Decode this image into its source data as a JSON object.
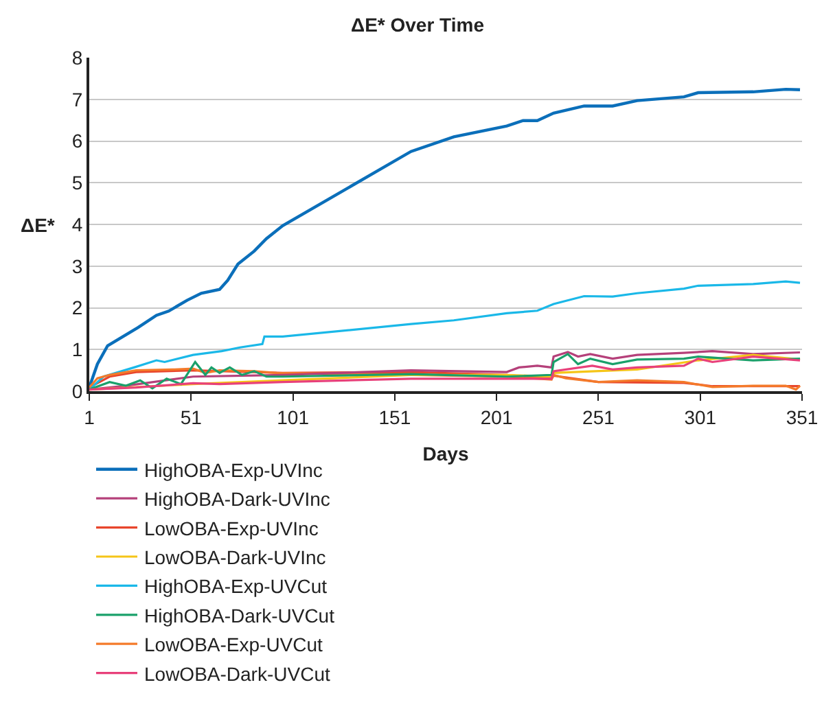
{
  "chart_data": {
    "type": "line",
    "title": "ΔE* Over Time",
    "xlabel": "Days",
    "ylabel": "ΔE*",
    "xlim": [
      1,
      351
    ],
    "xticks": [
      1,
      51,
      101,
      151,
      201,
      251,
      301,
      351
    ],
    "ylim": [
      0,
      8
    ],
    "yticks": [
      0,
      1,
      2,
      3,
      4,
      5,
      6,
      7,
      8
    ],
    "grid": "y",
    "legend": "bottom",
    "marker": "none",
    "line_style": "solid",
    "series": [
      {
        "name": "HighOBA-Exp-UVInc",
        "color": "#0b6fba",
        "x": [
          1,
          5,
          10,
          25,
          34,
          40,
          49,
          56,
          65,
          69,
          74,
          82,
          88,
          96,
          159,
          180,
          206,
          214,
          221,
          229,
          244,
          258,
          270,
          293,
          300,
          327,
          343,
          350
        ],
        "values": [
          0.09,
          0.65,
          1.09,
          1.53,
          1.82,
          1.92,
          2.18,
          2.35,
          2.44,
          2.66,
          3.05,
          3.36,
          3.66,
          3.97,
          5.75,
          6.1,
          6.36,
          6.49,
          6.49,
          6.67,
          6.84,
          6.84,
          6.97,
          7.06,
          7.16,
          7.18,
          7.24,
          7.23
        ]
      },
      {
        "name": "LowOBA-Exp-UVInc",
        "color": "#e8452c",
        "x": [
          1,
          11,
          24,
          52,
          96,
          159,
          206,
          228,
          229,
          251,
          293,
          307,
          350
        ],
        "values": [
          0.09,
          0.35,
          0.46,
          0.5,
          0.44,
          0.46,
          0.39,
          0.3,
          0.37,
          0.22,
          0.2,
          0.12,
          0.12
        ]
      },
      {
        "name": "HighOBA-Exp-UVCut",
        "color": "#1ab8e8",
        "x": [
          1,
          8,
          23,
          34,
          38,
          52,
          66,
          75,
          86,
          87,
          96,
          159,
          180,
          206,
          221,
          229,
          244,
          258,
          270,
          293,
          300,
          327,
          343,
          350
        ],
        "values": [
          0.04,
          0.35,
          0.57,
          0.74,
          0.7,
          0.87,
          0.96,
          1.05,
          1.13,
          1.31,
          1.31,
          1.61,
          1.7,
          1.87,
          1.93,
          2.09,
          2.28,
          2.27,
          2.35,
          2.46,
          2.53,
          2.57,
          2.63,
          2.6
        ]
      },
      {
        "name": "LowOBA-Exp-UVCut",
        "color": "#f47a2a",
        "x": [
          1,
          5,
          11,
          24,
          42,
          52,
          58,
          65,
          82,
          93,
          159,
          206,
          228,
          229,
          235,
          251,
          270,
          293,
          307,
          327,
          343,
          348,
          350
        ],
        "values": [
          0.09,
          0.31,
          0.39,
          0.5,
          0.52,
          0.54,
          0.44,
          0.5,
          0.48,
          0.44,
          0.39,
          0.35,
          0.28,
          0.39,
          0.31,
          0.22,
          0.26,
          0.22,
          0.1,
          0.13,
          0.13,
          0.04,
          0.13
        ]
      },
      {
        "name": "HighOBA-Dark-UVInc",
        "color": "#b5407a",
        "x": [
          1,
          19,
          52,
          96,
          159,
          206,
          212,
          221,
          228,
          229,
          236,
          241,
          247,
          258,
          270,
          293,
          307,
          327,
          350
        ],
        "values": [
          0.04,
          0.13,
          0.35,
          0.39,
          0.5,
          0.46,
          0.57,
          0.61,
          0.57,
          0.83,
          0.94,
          0.83,
          0.89,
          0.78,
          0.87,
          0.92,
          0.96,
          0.89,
          0.93
        ]
      },
      {
        "name": "LowOBA-Dark-UVInc",
        "color": "#f5c518",
        "x": [
          1,
          52,
          96,
          159,
          206,
          228,
          229,
          270,
          300,
          327,
          350
        ],
        "values": [
          0.04,
          0.17,
          0.26,
          0.39,
          0.39,
          0.35,
          0.44,
          0.52,
          0.74,
          0.87,
          0.76
        ]
      },
      {
        "name": "HighOBA-Dark-UVCut",
        "color": "#1aa06a",
        "x": [
          1,
          11,
          19,
          26,
          32,
          39,
          46,
          53,
          58,
          61,
          65,
          70,
          76,
          82,
          88,
          96,
          159,
          206,
          228,
          229,
          236,
          241,
          247,
          258,
          270,
          293,
          300,
          327,
          350
        ],
        "values": [
          0.04,
          0.22,
          0.13,
          0.26,
          0.07,
          0.3,
          0.17,
          0.7,
          0.39,
          0.57,
          0.44,
          0.57,
          0.39,
          0.48,
          0.35,
          0.35,
          0.41,
          0.35,
          0.39,
          0.7,
          0.89,
          0.65,
          0.78,
          0.65,
          0.76,
          0.78,
          0.83,
          0.74,
          0.78
        ]
      },
      {
        "name": "LowOBA-Dark-UVCut",
        "color": "#e8407a",
        "x": [
          1,
          24,
          52,
          65,
          96,
          159,
          206,
          228,
          229,
          248,
          258,
          270,
          293,
          300,
          307,
          327,
          350
        ],
        "values": [
          0.04,
          0.09,
          0.19,
          0.17,
          0.22,
          0.3,
          0.3,
          0.3,
          0.48,
          0.61,
          0.52,
          0.57,
          0.61,
          0.78,
          0.7,
          0.83,
          0.74
        ]
      }
    ]
  }
}
